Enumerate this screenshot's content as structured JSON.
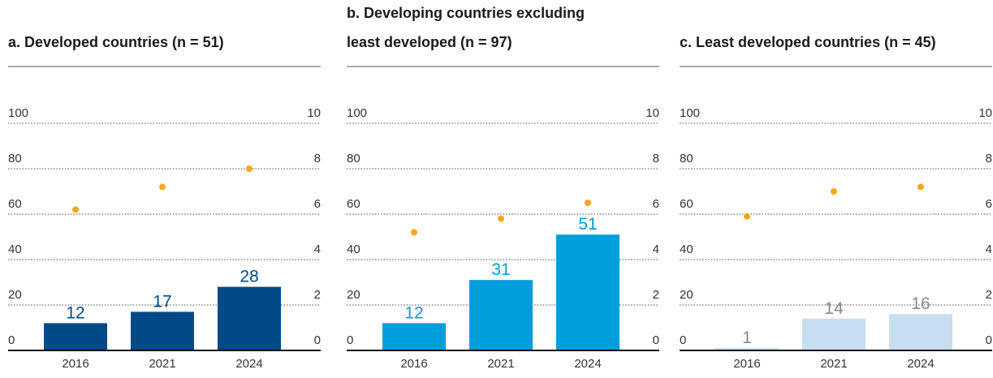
{
  "chart_data": [
    {
      "type": "bar",
      "title": [
        "a. Developed countries (n = 51)"
      ],
      "categories": [
        "2016",
        "2021",
        "2024"
      ],
      "series": [
        {
          "color": "#004b87",
          "label_color": "#004b87",
          "values": [
            12,
            17,
            28
          ]
        },
        {
          "type": "scatter",
          "axis": "y2",
          "color": "#f5a81c",
          "values": [
            6.2,
            7.2,
            8.0
          ]
        }
      ],
      "ylim": [
        0,
        100
      ],
      "yticks": [
        0,
        20,
        40,
        60,
        80,
        100
      ],
      "y2lim": [
        0,
        10
      ],
      "y2ticks": [
        0,
        2,
        4,
        6,
        8,
        10
      ],
      "grid": true
    },
    {
      "type": "bar",
      "title": [
        "b. Developing countries excluding",
        "least developed (n = 97)"
      ],
      "categories": [
        "2016",
        "2021",
        "2024"
      ],
      "series": [
        {
          "color": "#009edb",
          "label_color": "#009edb",
          "values": [
            12,
            31,
            51
          ]
        },
        {
          "type": "scatter",
          "axis": "y2",
          "color": "#f5a81c",
          "values": [
            5.2,
            5.8,
            6.5
          ]
        }
      ],
      "ylim": [
        0,
        100
      ],
      "yticks": [
        0,
        20,
        40,
        60,
        80,
        100
      ],
      "y2lim": [
        0,
        10
      ],
      "y2ticks": [
        0,
        2,
        4,
        6,
        8,
        10
      ],
      "grid": true
    },
    {
      "type": "bar",
      "title": [
        "c. Least developed countries (n = 45)"
      ],
      "categories": [
        "2016",
        "2021",
        "2024"
      ],
      "series": [
        {
          "color": "#c5dff0",
          "label_color": "#8a8a8a",
          "values": [
            1,
            14,
            16
          ]
        },
        {
          "type": "scatter",
          "axis": "y2",
          "color": "#f5a81c",
          "values": [
            5.9,
            7.0,
            7.2
          ]
        }
      ],
      "ylim": [
        0,
        100
      ],
      "yticks": [
        0,
        20,
        40,
        60,
        80,
        100
      ],
      "y2lim": [
        0,
        10
      ],
      "y2ticks": [
        0,
        2,
        4,
        6,
        8,
        10
      ],
      "grid": true
    }
  ]
}
